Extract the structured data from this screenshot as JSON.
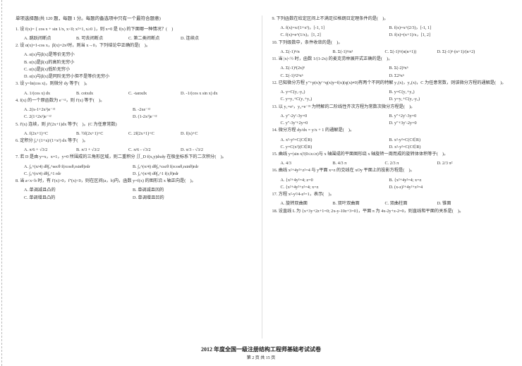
{
  "footer": {
    "title": "2012 年度全国一级注册结构工程师基础考试试卷",
    "page": "第 2 页 共 15 页"
  },
  "left": {
    "header": "单项选择题(共 120 题，每题 1 分。每题的备选项中只有一个最符合题意)",
    "questions": [
      {
        "num": "1.",
        "text": "设 f(x)= { cos x + sin 1/x, x<0; x²+1, x≥0 }，则 x=0 是 f(x) 的下面哪一种情况？(　)",
        "opts": [
          "A. 跳跃间断点",
          "B. 可去间断点",
          "C. 第二类间断点",
          "D. 连续点"
        ]
      },
      {
        "num": "2.",
        "text": "设 α(x)=1-cos x，β(x)=2x²时，则当 x→0，下列结论中正确的是(　)。",
        "opts": [
          "A. α(x)与β(x)是等价无穷小",
          "B. α(x)是β(x)的高阶无穷小",
          "C. α(x)是β(x)低阶无穷小",
          "D. α(x)与β(x)是同阶无穷小但不是等价无穷小"
        ],
        "optLayout": "col"
      },
      {
        "num": "3.",
        "text": "设 y=ln(cos x)，则微分 dy 等于(　)。",
        "opts": [
          "A. 1/(cos x) dx",
          "B. cotxdx",
          "C. -tanxdx",
          "D. -1/(cos x sin x) dx"
        ]
      },
      {
        "num": "4.",
        "text": "f(x) 的一个原函数为 e⁻ˣ²，则 f'(x) 等于(　)。",
        "opts": [
          "A. 2(x-1+2x²)e⁻ˣ²",
          "B. -2xe⁻ˣ²",
          "C. 2(1+2x²)e⁻ˣ²",
          "D. (1-2x²)e⁻ˣ²"
        ],
        "optLayout": "2col"
      },
      {
        "num": "5.",
        "text": "f'(x) 连续，则 ∫f'(2x+1)dx 等于(　)。(C 为任意常数)",
        "opts": [
          "A. f(2x+1)+C",
          "B. ½f(2x+1)+C",
          "C. 2f(2x+1)+C",
          "D. f(x)+C"
        ]
      },
      {
        "num": "6.",
        "text": "定积分 ∫₀² (1+x)/(1+x²) dx 等于(　)。",
        "opts": [
          "A. π/6 + √3/2",
          "B. π/3 + √3/2",
          "C. π/6 - √3/2",
          "D. π/3 - √3/2"
        ]
      },
      {
        "num": "7.",
        "text": "若 D 是由 y=x，x=1，y=0 所围成的三角形区域，则二重积分 ∬_D f(x,y)dxdy 在极坐标系下的二次积分(　)。",
        "opts": [
          "A. ∫₀^(π/4) dθ∫₀^secθ f(rcosθ,rsinθ)rdr",
          "B. ∫₀^(π/4) dθ∫₀^cscθ f(rcosθ,rsinθ)rdr",
          "C. ∫₀^(π/4) dθ∫₀^1 rdr",
          "D. ∫₀^(π/4) dθ∫₀^1 f(r,θ)rdr"
        ],
        "optLayout": "2col"
      },
      {
        "num": "8.",
        "text": "当 a<x<b 时，有 f'(x)>0，f''(x)<0，则在区间(a，b)内，函数 y=f(x) 的图形沿 x 轴正向是(　)。",
        "opts": [
          "A. 单调减且凸的",
          "B. 单调减且凹的",
          "C. 单调增且凸的",
          "D. 单调增且凹的"
        ],
        "optLayout": "2col"
      }
    ]
  },
  "right": {
    "questions": [
      {
        "num": "9.",
        "text": "下列函数在给定区间上不满足拉格朗日定理条件的是(　)。",
        "opts": [
          "A. f(x)=x/(1+x²)，[-1, 1]",
          "B. f(x)=x^(2/3)，[-1, 1]",
          "C. f(x)=e^(1/x)，[1, 2]",
          "D. f(x)=(x+1)/x，[1, 2]"
        ],
        "optLayout": "2col"
      },
      {
        "num": "10.",
        "text": "下列级数中，条件收敛的是(　)。",
        "opts": [
          "A. Σ(-1)ⁿ/n",
          "B. Σ(-1)ⁿ/n²",
          "C. Σ(-1)ⁿ/(n(n+1))",
          "D. Σ(-1)ⁿ·(n+1)/(n+2)"
        ]
      },
      {
        "num": "11.",
        "text": "当 |x|<½ 时，函数 1/(1-2x) 的麦克劳林展开式正确的是(　)。",
        "opts": [
          "A. Σ(-1)ⁿ(2x)ⁿ",
          "B. Σ(-2)ⁿxⁿ",
          "C. Σ(-1)ⁿ2ⁿxⁿ",
          "D. Σ2ⁿxⁿ"
        ],
        "optLayout": "2col"
      },
      {
        "num": "12.",
        "text": "已知微分方程 y″+p(x)y′+q(x)y=f(x)(q(x)≠0)有两个不同的特解 y₁(x)，y₂(x)，C 为任意常数，则该微分方程的通解是(　)。",
        "opts": [
          "A. y=C(y₁-y₂)",
          "B. y=C(y₁+y₂)",
          "C. y=y₁+C(y₁+y₂)",
          "D. y=y₁+C(y₁-y₂)"
        ],
        "optLayout": "2col"
      },
      {
        "num": "13.",
        "text": "以 y₁=eˣ，y₂=e⁻³ˣ 为特解的二阶线性齐次方程为常数次微分方程是(　)。",
        "opts": [
          "A. y″-2y′-3y=0",
          "B. y″+2y′-3y=0",
          "C. y″-3y′+2y=0",
          "D. y″+3y′-2y=0"
        ],
        "optLayout": "2col"
      },
      {
        "num": "14.",
        "text": "微分方程 dy/dx = y/x + 1 的通解是(　)。",
        "opts": [
          "A. x²-y²=C(C∈R)",
          "B. x²-y²=C(C∈R)",
          "C. y=C(x²)(C∈R)",
          "D. x²-y²=C(C∈R)"
        ],
        "optLayout": "2col"
      },
      {
        "num": "15.",
        "text": "曲线 y=|sin x|²(0≤x≤π)与 x 轴围成的平面图形绕 x 轴旋转一周而成的旋转体体积等于(　)。",
        "opts": [
          "A. 4/3",
          "B. 4/3 π",
          "C. 2/3 π",
          "D. 2/3 π²"
        ]
      },
      {
        "num": "16.",
        "text": "曲线 x²+4y²+z²=4 与 y平面 x=z 的交线在 xOy 平面上的投影方程是(　)。",
        "opts": [
          "A. {x²+4y²=4; z=0",
          "B. {x²+4y²=4; x=z",
          "C. {x²+4y²+z²=4; x=z",
          "D. (x-z)²+4y²+z²=4"
        ],
        "optLayout": "2col"
      },
      {
        "num": "17.",
        "text": "方程 x²-y²/4-z²=1，表示(　)。",
        "opts": [
          "A. 旋转双曲面",
          "B. 双叶双曲面",
          "C. 双曲柱面",
          "D. 锥面"
        ]
      },
      {
        "num": "18.",
        "text": "设直线 L 为 {x+3y+2z+1=0; 2x-y-10z+3=0}，平面 π 为 4x-2y+z-2=0，则直线和平面的关系是(　)。"
      }
    ]
  }
}
